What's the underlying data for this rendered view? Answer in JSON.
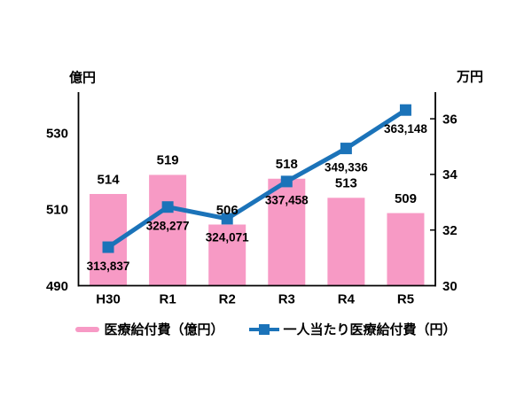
{
  "chart_data": {
    "type": "combo",
    "categories": [
      "H30",
      "R1",
      "R2",
      "R3",
      "R4",
      "R5"
    ],
    "series": [
      {
        "name": "医療給付費（億円）",
        "type": "bar",
        "axis": "left",
        "color": "#f79ac5",
        "values": [
          514,
          519,
          506,
          518,
          513,
          509
        ],
        "labels": [
          "514",
          "519",
          "506",
          "518",
          "513",
          "509"
        ]
      },
      {
        "name": "一人当たり医療給付費（円）",
        "type": "line",
        "axis": "right",
        "marker": "square",
        "color": "#1b73b9",
        "values": [
          313837,
          328277,
          324071,
          337458,
          349336,
          363148
        ],
        "labels": [
          "313,837",
          "328,277",
          "324,071",
          "337,458",
          "349,336",
          "363,148"
        ]
      }
    ],
    "left_axis": {
      "title": "億円",
      "tick_labels": [
        "530",
        "510",
        "490"
      ],
      "tick_values": [
        530,
        510,
        490
      ],
      "range": [
        490,
        540
      ]
    },
    "right_axis": {
      "title": "万円",
      "tick_labels": [
        "36",
        "34",
        "32",
        "30"
      ],
      "tick_values": [
        36,
        34,
        32,
        30
      ],
      "range": [
        30,
        37
      ]
    },
    "legend": {
      "position": "bottom"
    },
    "grid": false,
    "title": ""
  },
  "colors": {
    "bar": "#f79ac5",
    "line": "#1b73b9",
    "text": "#000000",
    "axis": "#000000"
  }
}
